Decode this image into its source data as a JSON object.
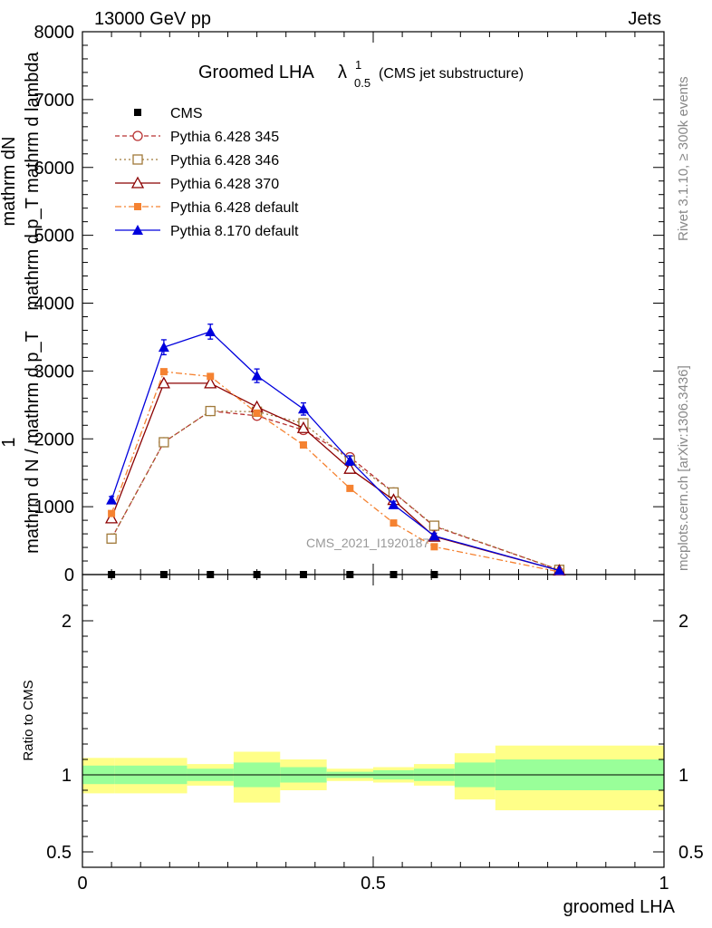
{
  "header": {
    "left": "13000 GeV pp",
    "right": "Jets"
  },
  "side_labels": {
    "rivet": "Rivet 3.1.10, ≥ 300k events",
    "mcplots": "mcplots.cern.ch [arXiv:1306.3436]"
  },
  "chart_data": [
    {
      "panel": "main",
      "type": "line",
      "title": "Groomed LHA",
      "title_symbol": "λ",
      "title_sup": "1",
      "title_sub": "0.5",
      "subtitle": "(CMS jet substructure)",
      "watermark": "CMS_2021_I1920187",
      "ylabel_num": "mathrm dN",
      "ylabel_den": "mathrm d p_T mathrm d lambda",
      "ylabel_prefix_num": "1",
      "ylabel_prefix_den": "mathrm d N / mathrm d p_T",
      "xlim": [
        0,
        1
      ],
      "ylim": [
        0,
        8000
      ],
      "yticks": [
        0,
        1000,
        2000,
        3000,
        4000,
        5000,
        6000,
        7000,
        8000
      ],
      "ytick_labels": [
        "0",
        "1000",
        "2000",
        "3000",
        "4000",
        "5000",
        "6000",
        "7000",
        "8000"
      ],
      "legend_position": "top-left",
      "series": [
        {
          "name": "CMS",
          "color": "#000000",
          "marker": "square-filled",
          "line": "none",
          "x": [
            0.05,
            0.14,
            0.22,
            0.3,
            0.38,
            0.46,
            0.535,
            0.605
          ],
          "y": [
            0,
            0,
            0,
            0,
            0,
            0,
            0,
            0
          ]
        },
        {
          "name": "Pythia 6.428 345",
          "color": "#b83030",
          "marker": "circle-open",
          "line": "dashed",
          "x": [
            0.05,
            0.14,
            0.22,
            0.3,
            0.38,
            0.46,
            0.535,
            0.605,
            0.82
          ],
          "y": [
            530,
            1950,
            2410,
            2340,
            2130,
            1730,
            1210,
            710,
            70
          ]
        },
        {
          "name": "Pythia 6.428 346",
          "color": "#a07a3a",
          "marker": "square-open",
          "line": "dotted",
          "x": [
            0.05,
            0.14,
            0.22,
            0.3,
            0.38,
            0.46,
            0.535,
            0.605,
            0.82
          ],
          "y": [
            530,
            1950,
            2410,
            2400,
            2230,
            1680,
            1210,
            720,
            70
          ]
        },
        {
          "name": "Pythia 6.428 370",
          "color": "#8b0000",
          "marker": "triangle-open",
          "line": "solid",
          "x": [
            0.05,
            0.14,
            0.22,
            0.3,
            0.38,
            0.46,
            0.535,
            0.605,
            0.82
          ],
          "y": [
            830,
            2820,
            2820,
            2470,
            2160,
            1560,
            1100,
            560,
            60
          ]
        },
        {
          "name": "Pythia 6.428 default",
          "color": "#f58231",
          "marker": "square-filled",
          "line": "dashdot",
          "x": [
            0.05,
            0.14,
            0.22,
            0.3,
            0.38,
            0.46,
            0.535,
            0.605,
            0.82
          ],
          "y": [
            900,
            2990,
            2920,
            2380,
            1910,
            1270,
            760,
            410,
            40
          ]
        },
        {
          "name": "Pythia 8.170 default",
          "color": "#0000dd",
          "marker": "triangle-filled",
          "line": "solid",
          "x": [
            0.05,
            0.14,
            0.22,
            0.3,
            0.38,
            0.46,
            0.535,
            0.605,
            0.82
          ],
          "y": [
            1100,
            3350,
            3580,
            2930,
            2440,
            1680,
            1030,
            570,
            60
          ],
          "yerr": [
            50,
            110,
            110,
            100,
            90,
            70,
            50,
            40,
            10
          ]
        }
      ]
    },
    {
      "panel": "ratio",
      "type": "area",
      "ylabel": "Ratio to CMS",
      "xlabel": "groomed LHA",
      "xlim": [
        0,
        1
      ],
      "ylim": [
        0.4,
        2.3
      ],
      "xticks": [
        0,
        0.5,
        1
      ],
      "xtick_labels": [
        "0",
        "0.5",
        "1"
      ],
      "yticks": [
        0.5,
        1,
        2
      ],
      "ytick_labels": [
        "0.5",
        "1",
        "2"
      ],
      "reference_line": 1,
      "colors": {
        "stat_band": "#99ff99",
        "total_band": "#ffff88"
      },
      "bins": [
        {
          "lo": 0.0,
          "hi": 0.055,
          "band_inner": [
            0.94,
            1.06
          ],
          "band_outer": [
            0.88,
            1.11
          ]
        },
        {
          "lo": 0.055,
          "hi": 0.18,
          "band_inner": [
            0.94,
            1.06
          ],
          "band_outer": [
            0.88,
            1.11
          ]
        },
        {
          "lo": 0.18,
          "hi": 0.26,
          "band_inner": [
            0.96,
            1.04
          ],
          "band_outer": [
            0.93,
            1.07
          ]
        },
        {
          "lo": 0.26,
          "hi": 0.34,
          "band_inner": [
            0.92,
            1.08
          ],
          "band_outer": [
            0.82,
            1.15
          ]
        },
        {
          "lo": 0.34,
          "hi": 0.42,
          "band_inner": [
            0.95,
            1.05
          ],
          "band_outer": [
            0.9,
            1.1
          ]
        },
        {
          "lo": 0.42,
          "hi": 0.5,
          "band_inner": [
            0.98,
            1.02
          ],
          "band_outer": [
            0.96,
            1.04
          ]
        },
        {
          "lo": 0.5,
          "hi": 0.57,
          "band_inner": [
            0.97,
            1.03
          ],
          "band_outer": [
            0.95,
            1.05
          ]
        },
        {
          "lo": 0.57,
          "hi": 0.64,
          "band_inner": [
            0.96,
            1.04
          ],
          "band_outer": [
            0.93,
            1.07
          ]
        },
        {
          "lo": 0.64,
          "hi": 0.71,
          "band_inner": [
            0.92,
            1.08
          ],
          "band_outer": [
            0.84,
            1.14
          ]
        },
        {
          "lo": 0.71,
          "hi": 1.0,
          "band_inner": [
            0.9,
            1.1
          ],
          "band_outer": [
            0.77,
            1.19
          ]
        }
      ]
    }
  ]
}
